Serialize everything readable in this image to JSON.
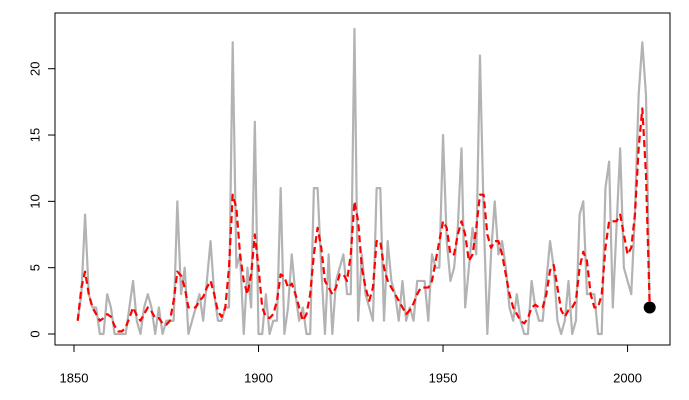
{
  "chart_data": {
    "type": "line",
    "x": [
      1851,
      1852,
      1853,
      1854,
      1855,
      1856,
      1857,
      1858,
      1859,
      1860,
      1861,
      1862,
      1863,
      1864,
      1865,
      1866,
      1867,
      1868,
      1869,
      1870,
      1871,
      1872,
      1873,
      1874,
      1875,
      1876,
      1877,
      1878,
      1879,
      1880,
      1881,
      1882,
      1883,
      1884,
      1885,
      1886,
      1887,
      1888,
      1889,
      1890,
      1891,
      1892,
      1893,
      1894,
      1895,
      1896,
      1897,
      1898,
      1899,
      1900,
      1901,
      1902,
      1903,
      1904,
      1905,
      1906,
      1907,
      1908,
      1909,
      1910,
      1911,
      1912,
      1913,
      1914,
      1915,
      1916,
      1917,
      1918,
      1919,
      1920,
      1921,
      1922,
      1923,
      1924,
      1925,
      1926,
      1927,
      1928,
      1929,
      1930,
      1931,
      1932,
      1933,
      1934,
      1935,
      1936,
      1937,
      1938,
      1939,
      1940,
      1941,
      1942,
      1943,
      1944,
      1945,
      1946,
      1947,
      1948,
      1949,
      1950,
      1951,
      1952,
      1953,
      1954,
      1955,
      1956,
      1957,
      1958,
      1959,
      1960,
      1961,
      1962,
      1963,
      1964,
      1965,
      1966,
      1967,
      1968,
      1969,
      1970,
      1971,
      1972,
      1973,
      1974,
      1975,
      1976,
      1977,
      1978,
      1979,
      1980,
      1981,
      1982,
      1983,
      1984,
      1985,
      1986,
      1987,
      1988,
      1989,
      1990,
      1991,
      1992,
      1993,
      1994,
      1995,
      1996,
      1997,
      1998,
      1999,
      2000,
      2001,
      2002,
      2003,
      2004,
      2005,
      2006
    ],
    "series": [
      {
        "color": "#b3b3b3",
        "dash": false,
        "values": [
          1,
          3,
          9,
          3,
          2,
          2,
          0,
          0,
          3,
          2,
          0,
          0,
          0,
          0,
          2,
          4,
          1,
          0,
          2,
          3,
          2,
          0,
          2,
          0,
          1,
          1,
          1,
          10,
          3,
          5,
          0,
          1,
          2,
          3,
          1,
          4,
          7,
          3,
          1,
          1,
          2,
          2,
          22,
          5,
          6,
          0,
          5,
          2,
          16,
          0,
          0,
          3,
          0,
          1,
          1,
          11,
          0,
          2,
          6,
          3,
          1,
          2,
          0,
          0,
          11,
          11,
          5,
          0,
          6,
          0,
          4,
          5,
          6,
          3,
          3,
          23,
          1,
          6,
          3,
          2,
          1,
          11,
          11,
          1,
          7,
          4,
          3,
          1,
          4,
          1,
          2,
          1,
          4,
          4,
          4,
          1,
          6,
          5,
          5,
          15,
          7,
          4,
          5,
          8,
          14,
          2,
          5,
          8,
          6,
          21,
          9,
          0,
          6,
          10,
          6,
          7,
          5,
          2,
          1,
          3,
          1,
          0,
          0,
          4,
          2,
          1,
          1,
          4,
          7,
          5,
          1,
          0,
          1,
          4,
          0,
          1,
          9,
          10,
          3,
          3,
          3,
          0,
          0,
          11,
          13,
          2,
          8,
          14,
          5,
          4,
          3,
          9,
          18,
          22,
          18,
          2
        ]
      },
      {
        "color": "#ff0000",
        "dash": true,
        "values": [
          1,
          3.5,
          4.7,
          3,
          2,
          1.5,
          1,
          1.2,
          1.5,
          1.3,
          0.6,
          0.2,
          0.2,
          0.5,
          1.2,
          2,
          1.4,
          1,
          1.5,
          2,
          1.7,
          1.2,
          1.2,
          0.8,
          0.7,
          1,
          2.5,
          4.7,
          4.4,
          3.5,
          2,
          2,
          2,
          2.5,
          2.8,
          3.5,
          4,
          3,
          1.7,
          1.3,
          2,
          5,
          10.5,
          9.5,
          6,
          4,
          3,
          4.5,
          7.5,
          5,
          2,
          1.3,
          1.2,
          1.5,
          2.5,
          4.5,
          4.3,
          3.5,
          3.8,
          3,
          2,
          1,
          1.5,
          3,
          6,
          8,
          6.5,
          4,
          3.5,
          3,
          3.5,
          4.5,
          4.5,
          4,
          6,
          10,
          8.5,
          5,
          3.5,
          2.5,
          3.5,
          7,
          7,
          5,
          4,
          3.5,
          3,
          2.5,
          2,
          1.5,
          1.8,
          2.3,
          3,
          3.5,
          3.5,
          3.5,
          4,
          5.5,
          7,
          8.5,
          8,
          6,
          6,
          7.5,
          8.5,
          7.5,
          5.5,
          6,
          8,
          10.5,
          10.5,
          7.5,
          6.5,
          7,
          7,
          6,
          4.5,
          3,
          2,
          1.5,
          1,
          0.8,
          1.2,
          2,
          2.2,
          2,
          2,
          3,
          4.8,
          5.2,
          3.5,
          1.8,
          1.3,
          1.8,
          2,
          2.5,
          5,
          6.2,
          5.5,
          3,
          2,
          2,
          3,
          6.5,
          8.5,
          8.5,
          8.5,
          9,
          7.5,
          6,
          6.5,
          9,
          14,
          17,
          12,
          2
        ]
      }
    ],
    "point": {
      "x": 2006,
      "y": 2,
      "color": "#000000"
    },
    "xlim": [
      1844.85,
      2011.5
    ],
    "ylim": [
      -0.83,
      24.2
    ],
    "xticks": [
      1850,
      1900,
      1950,
      2000
    ],
    "yticks": [
      0,
      5,
      10,
      15,
      20
    ]
  }
}
